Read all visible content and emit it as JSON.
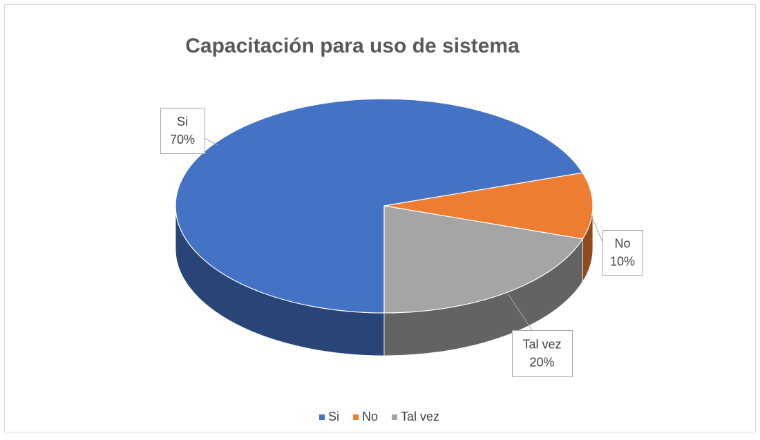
{
  "chart_data": {
    "type": "pie",
    "title": "Capacitación para uso de sistema",
    "categories": [
      "Si",
      "No",
      "Tal vez"
    ],
    "values": [
      70,
      10,
      20
    ],
    "value_labels": [
      "70%",
      "10%",
      "20%"
    ],
    "colors": [
      "#4472c4",
      "#ed7d31",
      "#a5a5a5"
    ],
    "legend": "bottom"
  }
}
